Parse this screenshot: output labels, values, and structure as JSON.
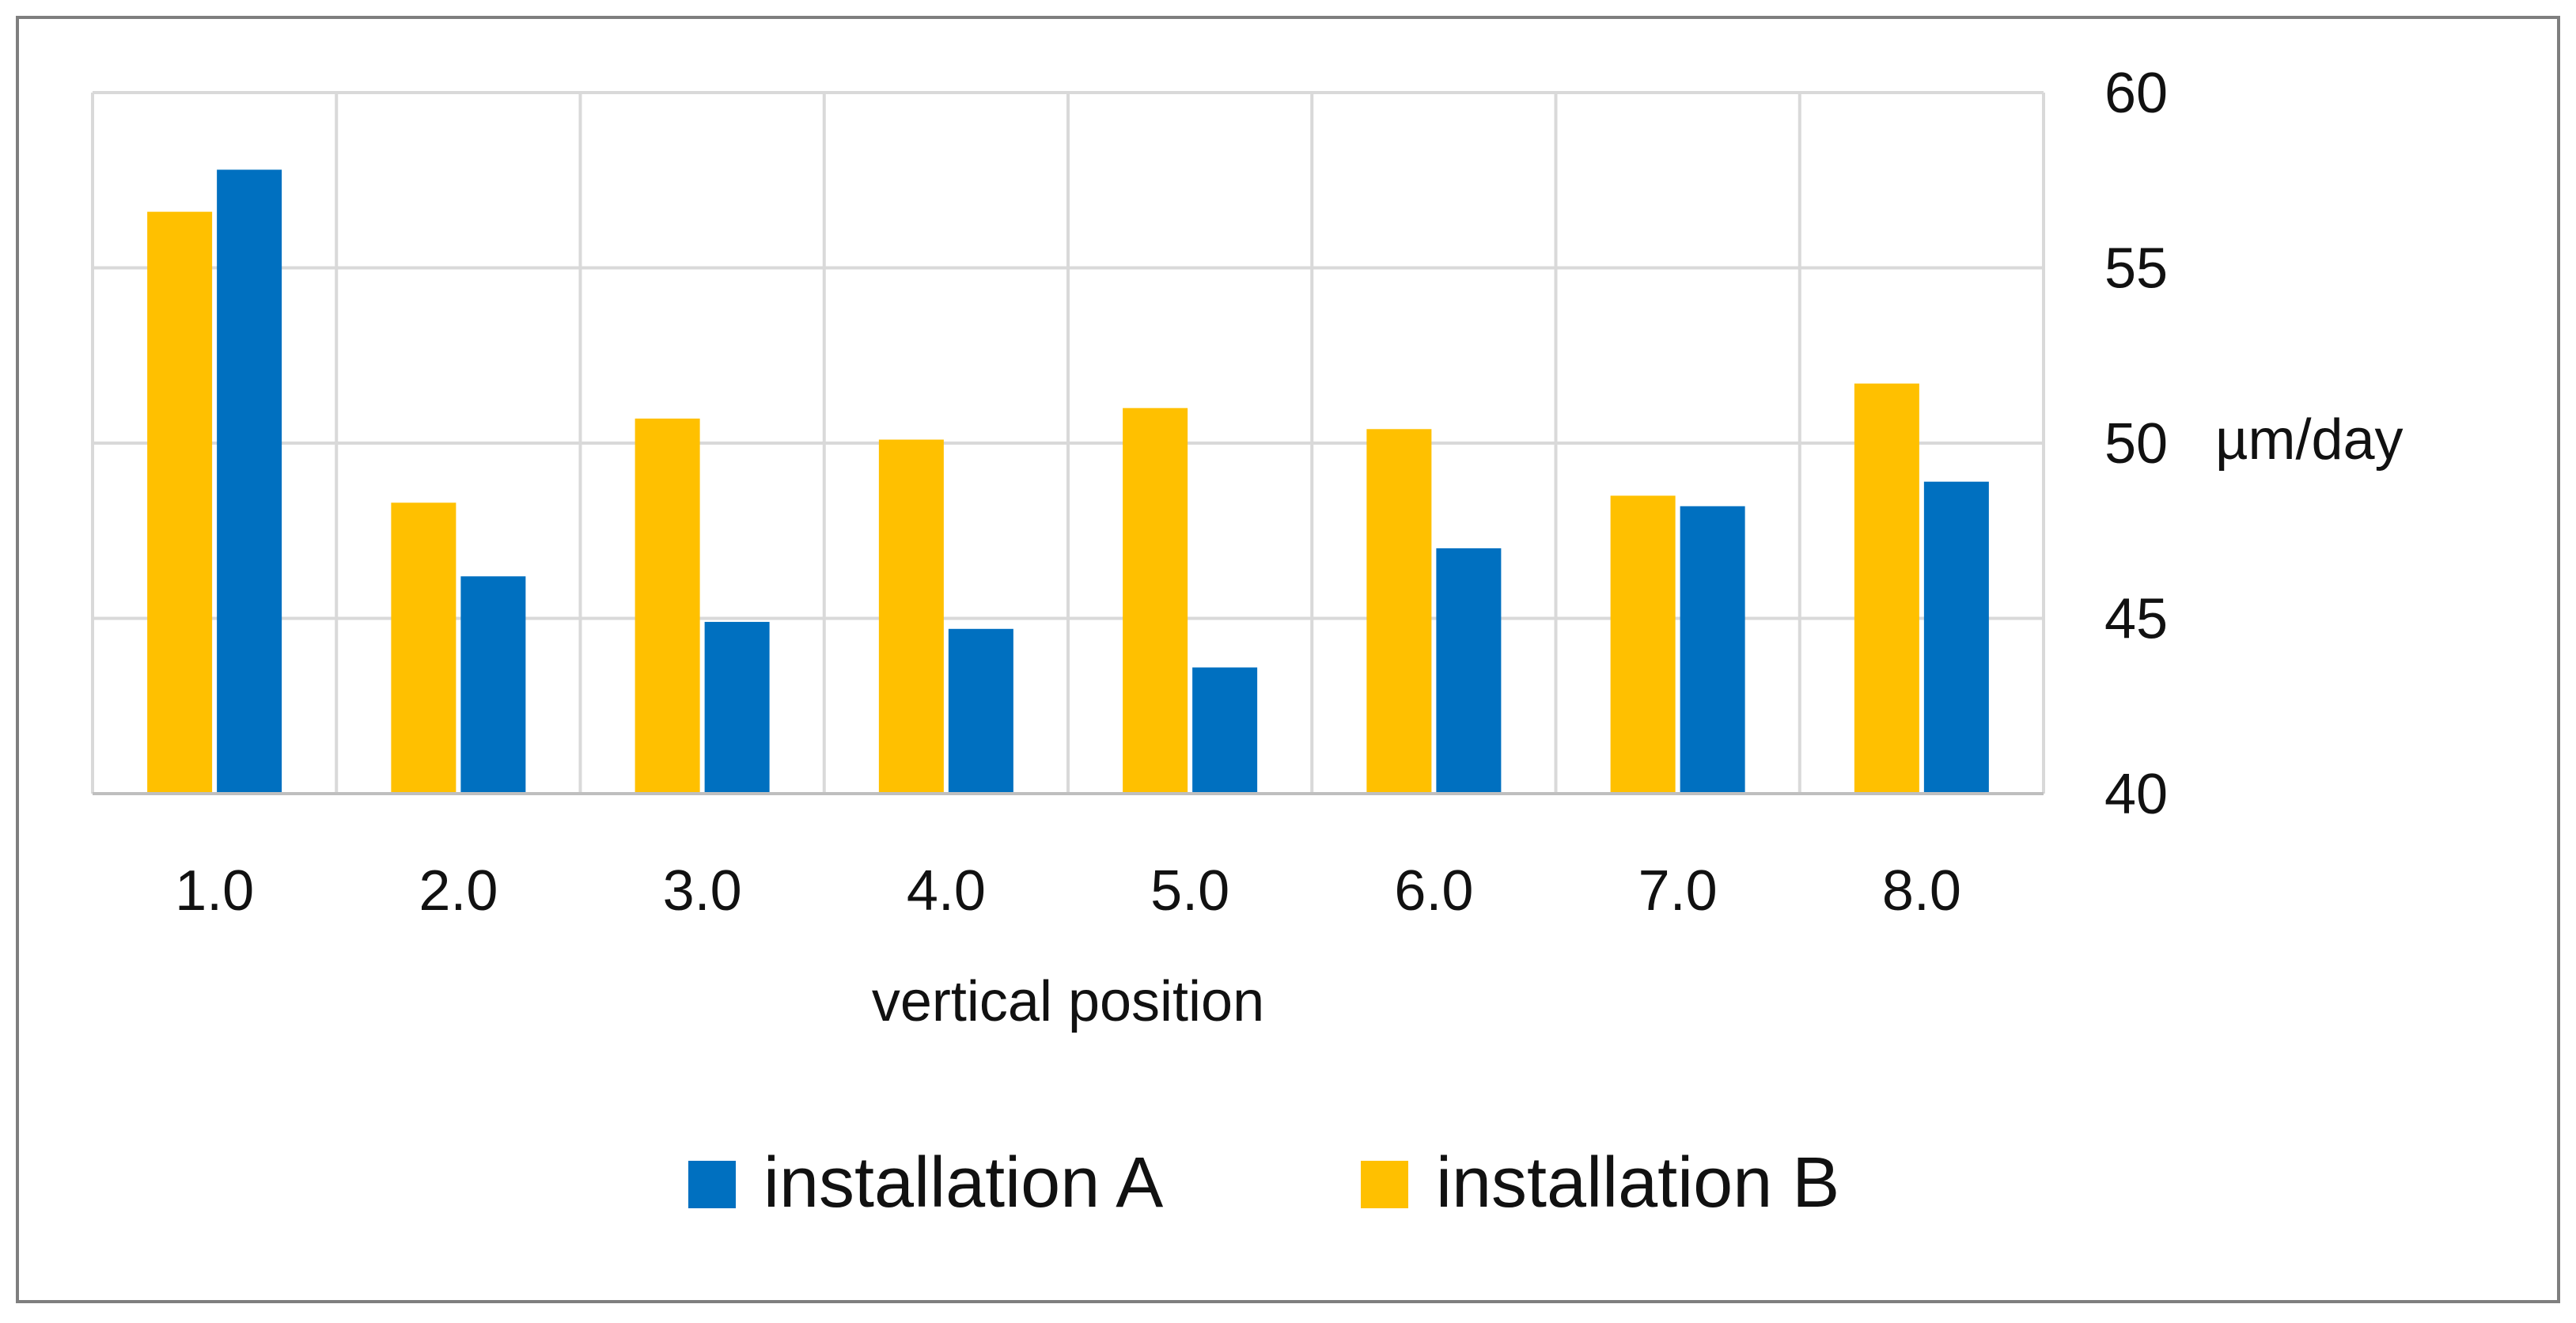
{
  "chart_data": {
    "type": "bar",
    "title": "",
    "categories": [
      "1.0",
      "2.0",
      "3.0",
      "4.0",
      "5.0",
      "6.0",
      "7.0",
      "8.0"
    ],
    "series": [
      {
        "name": "installation B",
        "color": "#FFC000",
        "values": [
          56.6,
          48.3,
          50.7,
          50.1,
          51.0,
          50.4,
          48.5,
          51.7
        ]
      },
      {
        "name": "installation A",
        "color": "#0070C0",
        "values": [
          57.8,
          46.2,
          44.9,
          44.7,
          43.6,
          47.0,
          48.2,
          48.9
        ]
      }
    ],
    "legend_order": [
      "installation A",
      "installation B"
    ],
    "xlabel": "vertical position",
    "ylabel": "µm/day",
    "ylim": [
      40,
      60
    ],
    "yticks": [
      40,
      45,
      50,
      55,
      60
    ],
    "grid": true,
    "legend_position": "bottom-center",
    "y_axis_side": "right"
  }
}
